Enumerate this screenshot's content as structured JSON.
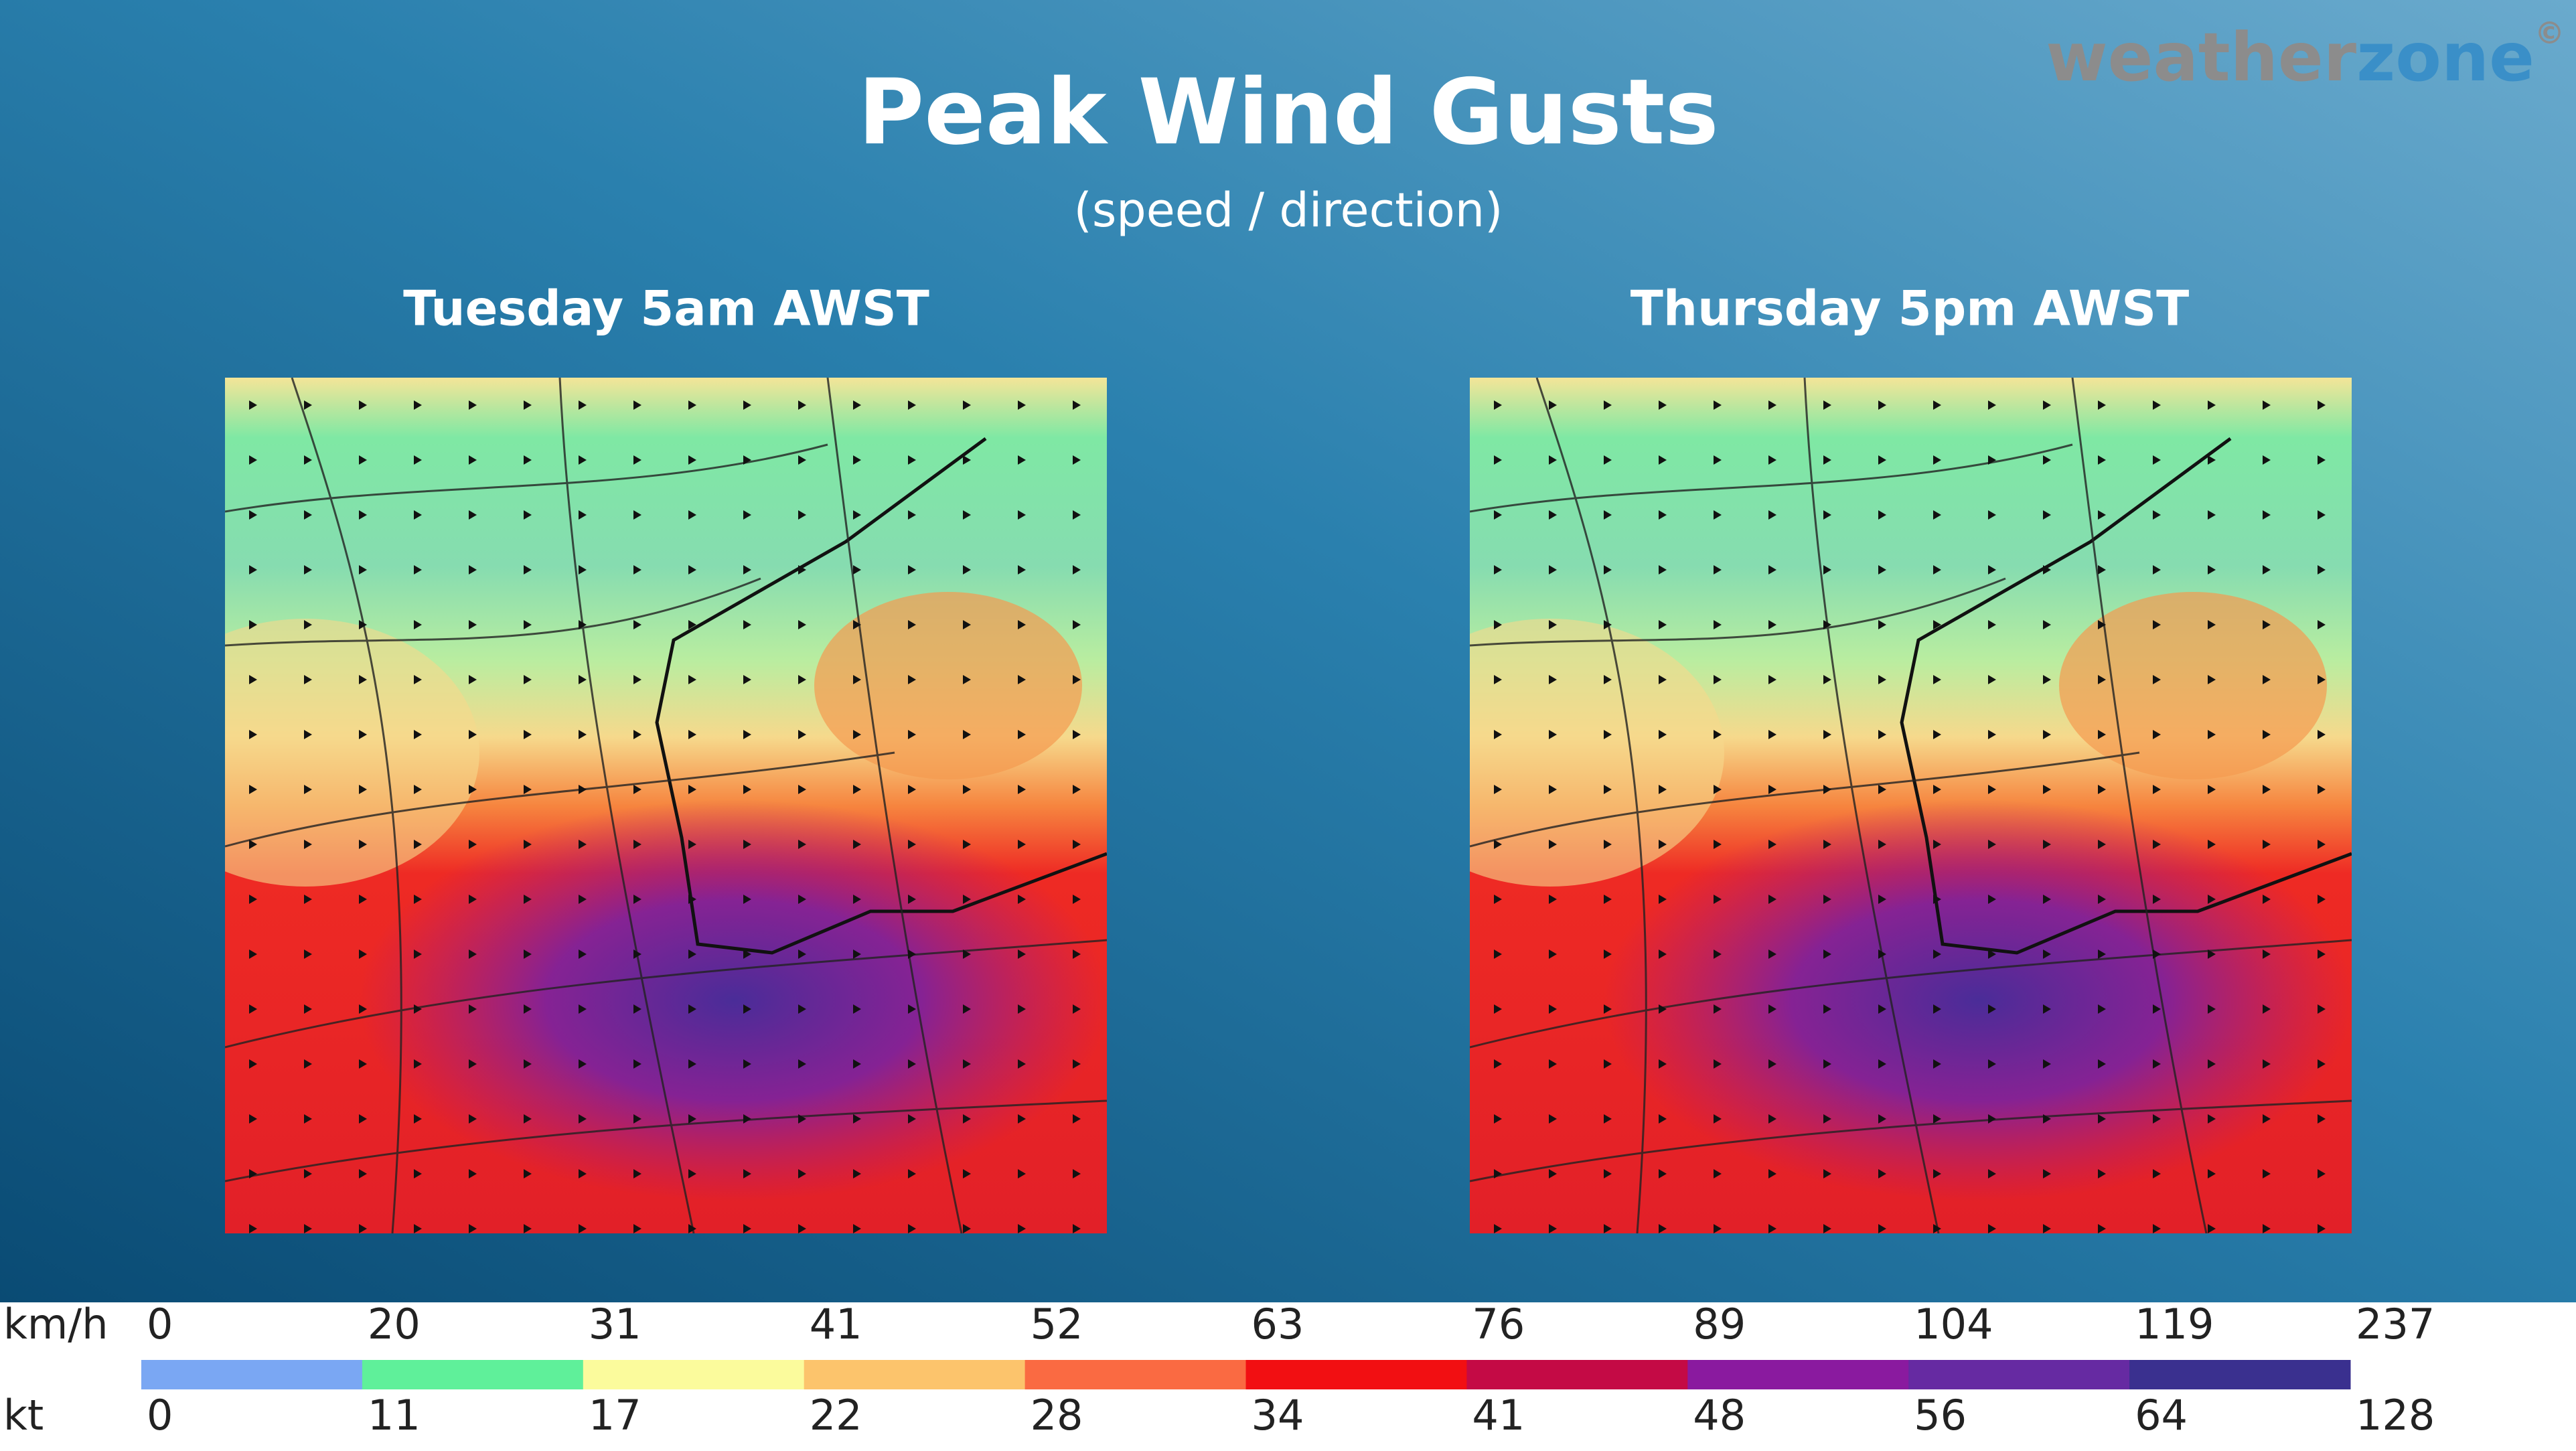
{
  "header": {
    "title": "Peak Wind Gusts",
    "subtitle": "(speed / direction)",
    "brand": {
      "word1": "weather",
      "word2": "zone",
      "symbol": "©"
    }
  },
  "panels": [
    {
      "label": "Tuesday 5am AWST"
    },
    {
      "label": "Thursday 5pm AWST"
    }
  ],
  "legend": {
    "units": [
      "km/h",
      "kt"
    ],
    "kmh": [
      0,
      20,
      31,
      41,
      52,
      63,
      76,
      89,
      104,
      119,
      237
    ],
    "kt": [
      0,
      11,
      17,
      22,
      28,
      34,
      41,
      48,
      56,
      64,
      128
    ],
    "colors": [
      "#7aa7f3",
      "#5ff09a",
      "#fbfb9c",
      "#fcc46c",
      "#fa6a42",
      "#f20f12",
      "#c40a45",
      "#8a1a9f",
      "#662aa2",
      "#3a308f"
    ]
  }
}
